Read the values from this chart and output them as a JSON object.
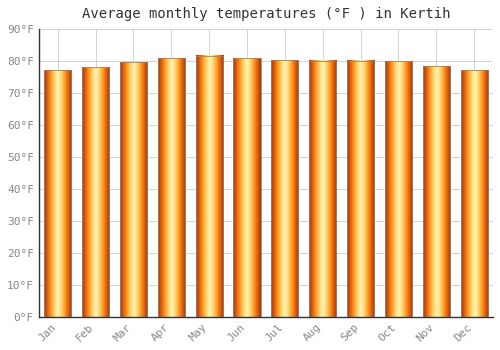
{
  "title": "Average monthly temperatures (°F ) in Kertih",
  "months": [
    "Jan",
    "Feb",
    "Mar",
    "Apr",
    "May",
    "Jun",
    "Jul",
    "Aug",
    "Sep",
    "Oct",
    "Nov",
    "Dec"
  ],
  "values": [
    77.2,
    78.1,
    79.7,
    81.0,
    81.7,
    81.0,
    80.2,
    80.1,
    80.1,
    79.9,
    78.4,
    77.2
  ],
  "bar_color_center": "#FFD040",
  "bar_color_edge": "#F0960A",
  "bar_edge_color": "#888888",
  "background_color": "#FFFFFF",
  "plot_bg_color": "#FFFFFF",
  "grid_color": "#CCCCCC",
  "ylim": [
    0,
    90
  ],
  "yticks": [
    0,
    10,
    20,
    30,
    40,
    50,
    60,
    70,
    80,
    90
  ],
  "ylabel_format": "°F",
  "title_fontsize": 10,
  "tick_fontsize": 8,
  "font_family": "monospace",
  "bar_width": 0.72
}
